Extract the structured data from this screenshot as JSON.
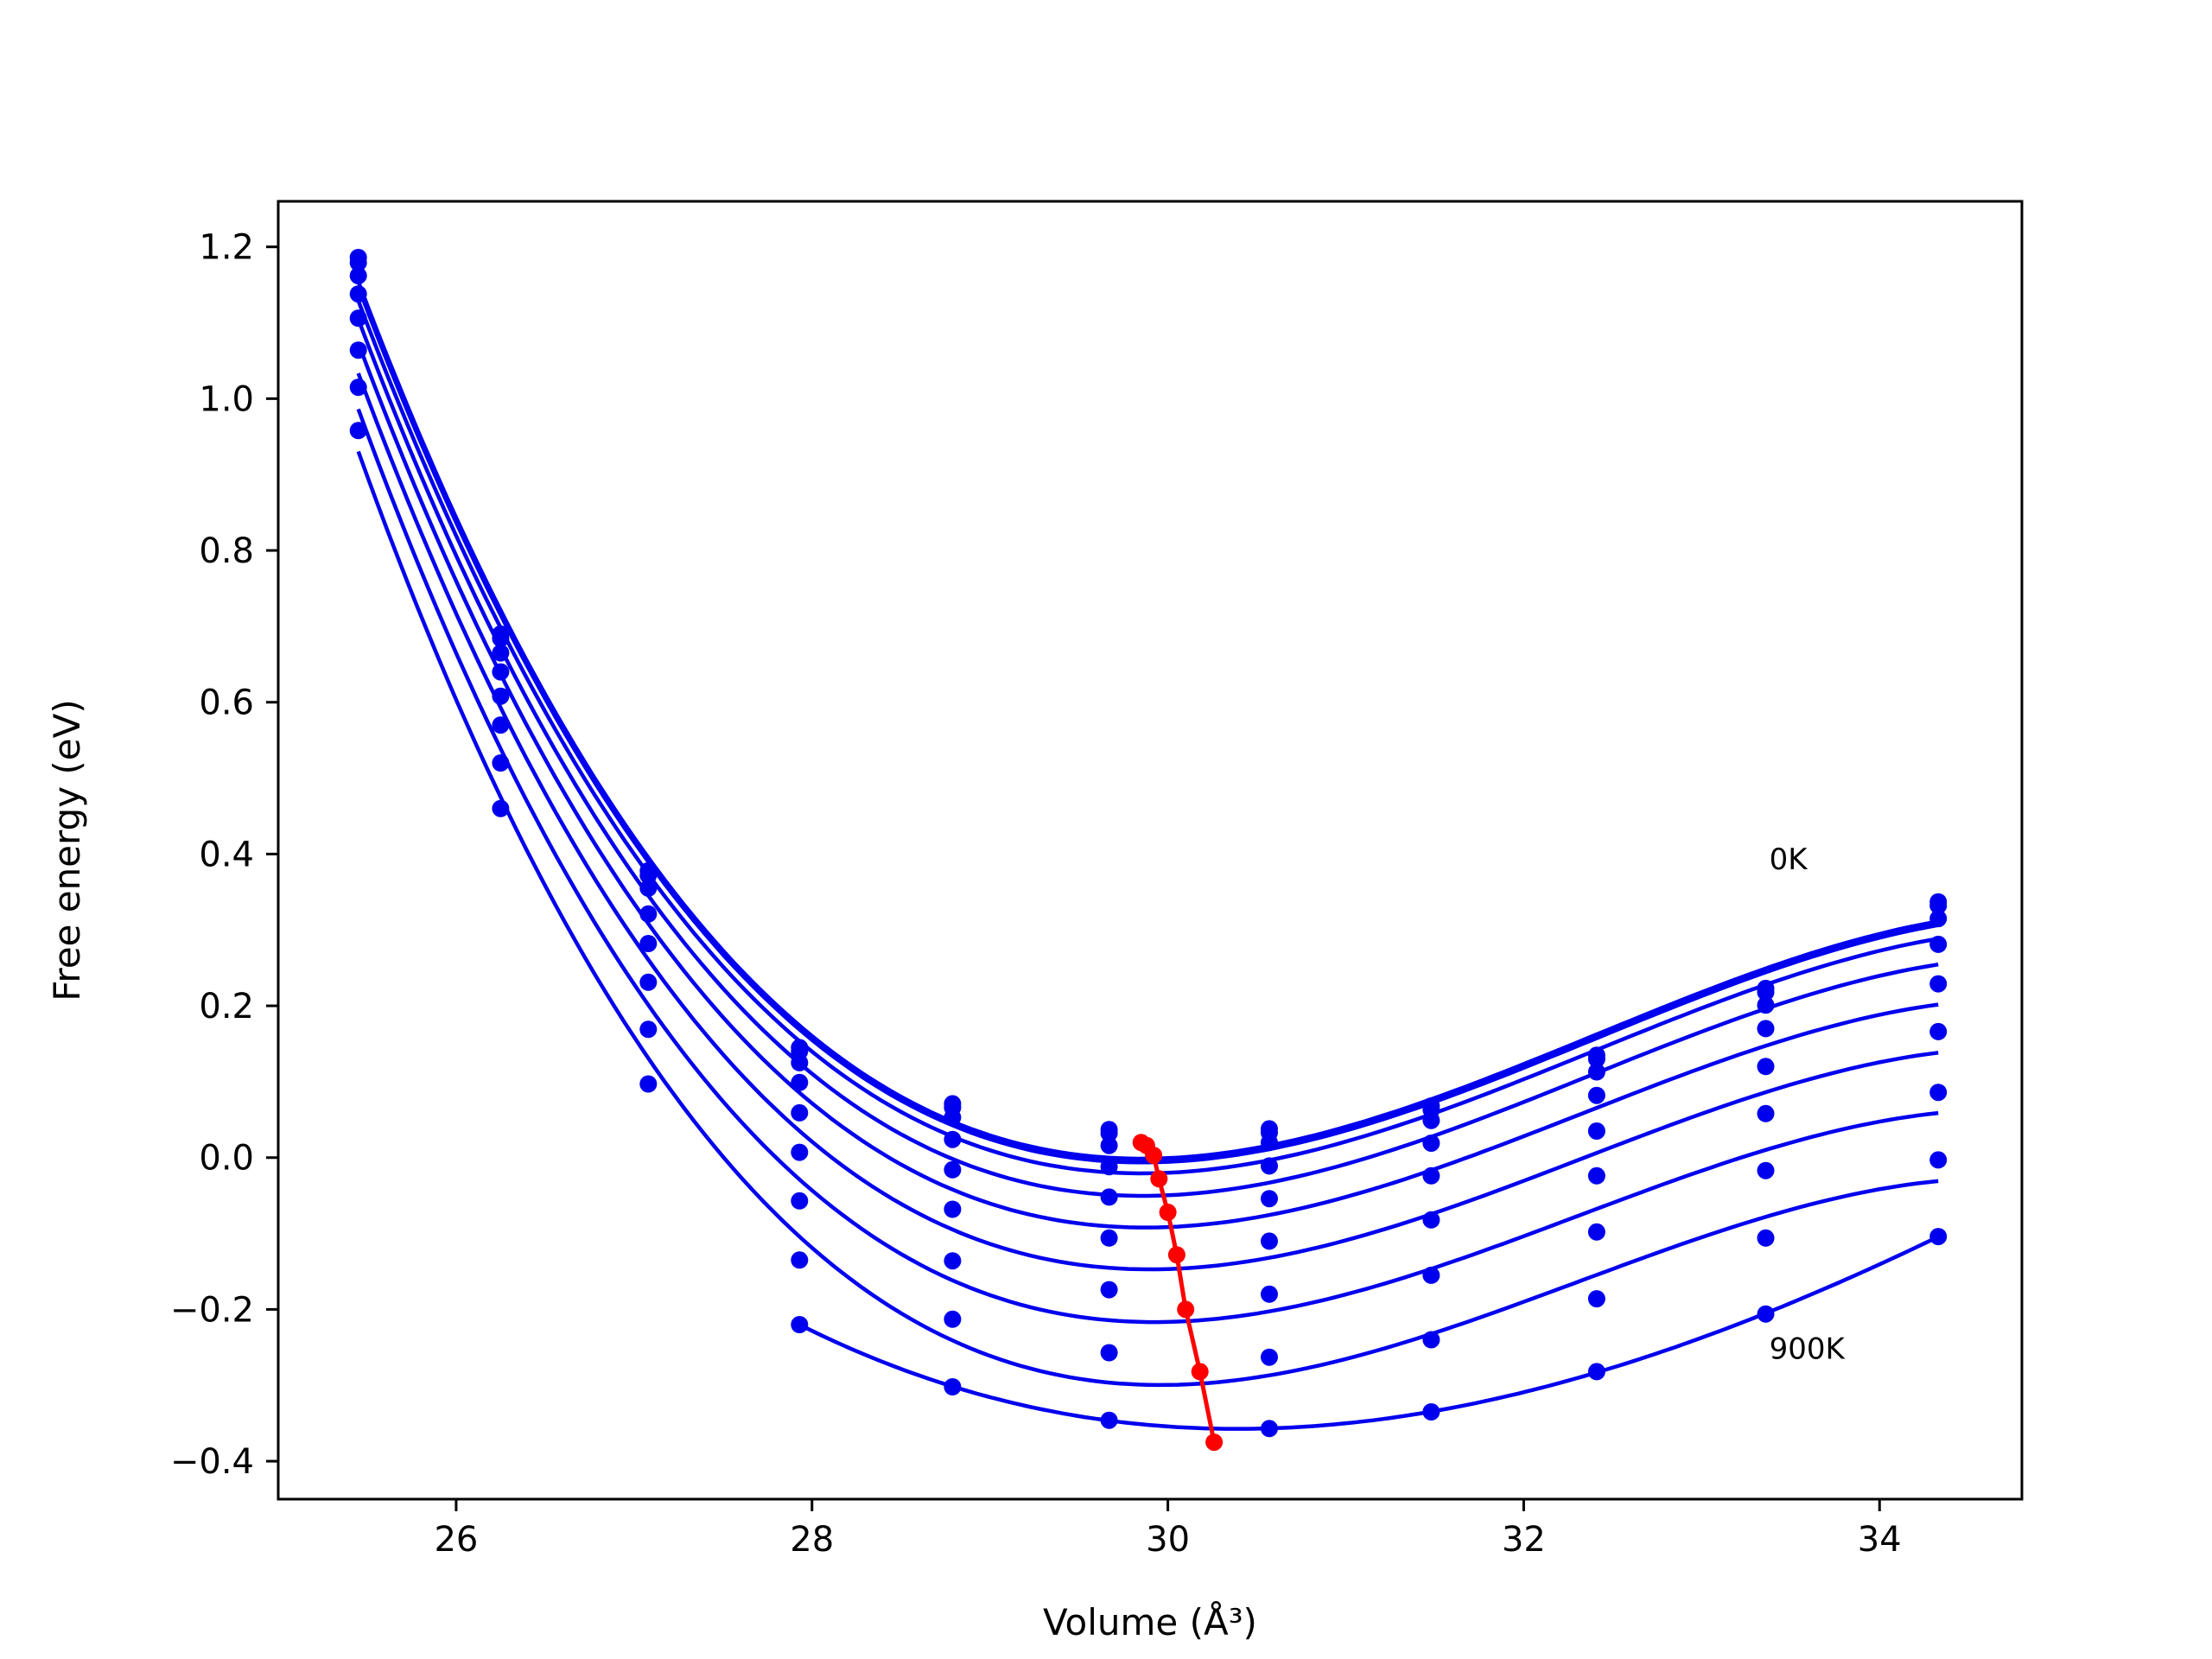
{
  "chart_data": {
    "type": "line",
    "title": "",
    "xlabel": "Volume (Å³)",
    "ylabel": "Free energy (eV)",
    "xlim": [
      25.0,
      34.8
    ],
    "ylim": [
      -0.45,
      1.26
    ],
    "xticks": [
      26,
      28,
      30,
      32,
      34
    ],
    "yticks": [
      -0.4,
      -0.2,
      0.0,
      0.2,
      0.4,
      0.6,
      0.8,
      1.0,
      1.2
    ],
    "xtick_labels": [
      "26",
      "28",
      "30",
      "32",
      "34"
    ],
    "ytick_labels": [
      "−0.4",
      "−0.2",
      "0.0",
      "0.2",
      "0.4",
      "0.6",
      "0.8",
      "1.0",
      "1.2"
    ],
    "grid": false,
    "legend": "none",
    "annotations": [
      {
        "text": "0K",
        "x": 33.38,
        "y": 0.38
      },
      {
        "text": "900K",
        "x": 33.38,
        "y": -0.265
      }
    ],
    "colors": {
      "curves": "#0000ee",
      "minimum_path": "#ff0000"
    },
    "volumes": [
      25.45,
      26.25,
      27.08,
      27.93,
      28.79,
      29.67,
      30.57,
      31.48,
      32.41,
      33.36,
      34.33
    ],
    "series": [
      {
        "values": [
          1.186,
          0.69,
          0.378,
          0.145,
          0.071,
          0.037,
          0.038,
          0.068,
          0.135,
          0.223,
          0.337
        ]
      },
      {
        "values": [
          1.179,
          0.684,
          0.372,
          0.14,
          0.066,
          0.032,
          0.033,
          0.063,
          0.13,
          0.218,
          0.332
        ]
      },
      {
        "values": [
          1.162,
          0.665,
          0.355,
          0.125,
          0.053,
          0.016,
          0.02,
          0.049,
          0.113,
          0.201,
          0.315
        ]
      },
      {
        "values": [
          1.138,
          0.64,
          0.321,
          0.099,
          0.024,
          -0.012,
          -0.011,
          0.019,
          0.082,
          0.17,
          0.281
        ]
      },
      {
        "values": [
          1.106,
          0.608,
          0.282,
          0.059,
          -0.016,
          -0.052,
          -0.054,
          -0.024,
          0.035,
          0.12,
          0.229
        ]
      },
      {
        "values": [
          1.064,
          0.57,
          0.231,
          0.007,
          -0.068,
          -0.106,
          -0.11,
          -0.082,
          -0.024,
          0.058,
          0.166
        ]
      },
      {
        "values": [
          1.015,
          0.52,
          0.169,
          -0.057,
          -0.136,
          -0.174,
          -0.18,
          -0.155,
          -0.098,
          -0.017,
          0.086
        ]
      },
      {
        "values": [
          0.958,
          0.46,
          0.097,
          -0.135,
          -0.213,
          -0.257,
          -0.263,
          -0.24,
          -0.186,
          -0.106,
          -0.003
        ]
      },
      {
        "values": [
          null,
          null,
          null,
          -0.22,
          -0.302,
          -0.346,
          -0.357,
          -0.335,
          -0.282,
          -0.206,
          -0.104
        ]
      }
    ],
    "minimum_path": {
      "x": [
        29.85,
        29.88,
        29.92,
        29.95,
        30.0,
        30.05,
        30.1,
        30.18,
        30.26
      ],
      "y": [
        0.02,
        0.016,
        0.003,
        -0.028,
        -0.072,
        -0.128,
        -0.2,
        -0.282,
        -0.375
      ]
    }
  }
}
